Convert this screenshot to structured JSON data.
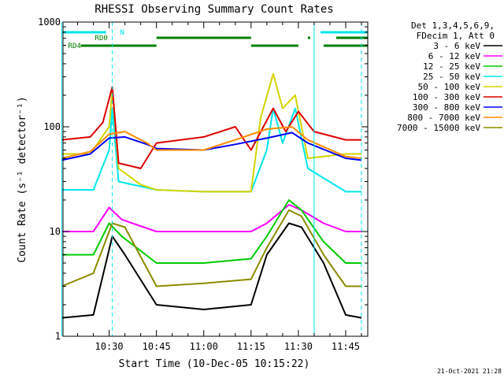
{
  "chart_data": {
    "type": "line",
    "title": "RHESSI Observing Summary Count Rates",
    "xlabel": "Start Time (10-Dec-05 10:15:22)",
    "ylabel": "Count Rate (s⁻¹ detector⁻¹)",
    "yscale": "log",
    "ylim": [
      1,
      1000
    ],
    "xlim": [
      "10:15:22",
      "11:52:00"
    ],
    "y_ticks": [
      {
        "value": 1,
        "label": "1"
      },
      {
        "value": 10,
        "label": "10"
      },
      {
        "value": 100,
        "label": "100"
      },
      {
        "value": 1000,
        "label": "1000"
      }
    ],
    "x_ticks": [
      {
        "value": "10:30",
        "label": "10:30"
      },
      {
        "value": "10:45",
        "label": "10:45"
      },
      {
        "value": "11:00",
        "label": "11:00"
      },
      {
        "value": "11:15",
        "label": "11:15"
      },
      {
        "value": "11:30",
        "label": "11:30"
      },
      {
        "value": "11:45",
        "label": "11:45"
      }
    ],
    "legend_header": [
      "Det 1,3,4,5,6,9,",
      "FDecim 1, Att 0"
    ],
    "legend_position": "right",
    "series": [
      {
        "name": "3 - 6 keV",
        "color": "#000000",
        "points": [
          [
            "10:15",
            1.5
          ],
          [
            "10:25",
            1.6
          ],
          [
            "10:31",
            9
          ],
          [
            "10:35",
            6
          ],
          [
            "10:45",
            2
          ],
          [
            "11:00",
            1.8
          ],
          [
            "11:15",
            2.0
          ],
          [
            "11:20",
            6
          ],
          [
            "11:27",
            12
          ],
          [
            "11:31",
            11
          ],
          [
            "11:38",
            5
          ],
          [
            "11:45",
            1.6
          ],
          [
            "11:50",
            1.5
          ]
        ]
      },
      {
        "name": "6 - 12 keV",
        "color": "#ff00ff",
        "points": [
          [
            "10:15",
            10
          ],
          [
            "10:25",
            10
          ],
          [
            "10:30",
            17
          ],
          [
            "10:34",
            13
          ],
          [
            "10:45",
            10
          ],
          [
            "11:00",
            10
          ],
          [
            "11:15",
            10
          ],
          [
            "11:20",
            12
          ],
          [
            "11:27",
            18
          ],
          [
            "11:31",
            16
          ],
          [
            "11:38",
            12
          ],
          [
            "11:45",
            10
          ],
          [
            "11:50",
            10
          ]
        ]
      },
      {
        "name": "12 - 25 keV",
        "color": "#00cc00",
        "points": [
          [
            "10:15",
            6
          ],
          [
            "10:25",
            6
          ],
          [
            "10:30",
            12
          ],
          [
            "10:34",
            9
          ],
          [
            "10:45",
            5
          ],
          [
            "11:00",
            5
          ],
          [
            "11:15",
            5.5
          ],
          [
            "11:20",
            9
          ],
          [
            "11:27",
            20
          ],
          [
            "11:31",
            16
          ],
          [
            "11:38",
            8
          ],
          [
            "11:45",
            5
          ],
          [
            "11:50",
            5
          ]
        ]
      },
      {
        "name": "25 - 50 keV",
        "color": "#00e5ee",
        "points": [
          [
            "10:15",
            25
          ],
          [
            "10:25",
            25
          ],
          [
            "10:30",
            60
          ],
          [
            "10:31",
            150
          ],
          [
            "10:33",
            30
          ],
          [
            "10:45",
            25
          ],
          [
            "11:00",
            24
          ],
          [
            "11:15",
            24
          ],
          [
            "11:20",
            60
          ],
          [
            "11:22",
            150
          ],
          [
            "11:25",
            70
          ],
          [
            "11:29",
            150
          ],
          [
            "11:33",
            40
          ],
          [
            "11:45",
            24
          ],
          [
            "11:50",
            24
          ]
        ]
      },
      {
        "name": "50 - 100 keV",
        "color": "#d4d400",
        "points": [
          [
            "10:15",
            55
          ],
          [
            "10:24",
            55
          ],
          [
            "10:30",
            100
          ],
          [
            "10:31",
            230
          ],
          [
            "10:33",
            40
          ],
          [
            "10:40",
            28
          ],
          [
            "10:45",
            25
          ],
          [
            "11:00",
            24
          ],
          [
            "11:15",
            24
          ],
          [
            "11:18",
            120
          ],
          [
            "11:22",
            320
          ],
          [
            "11:25",
            150
          ],
          [
            "11:29",
            200
          ],
          [
            "11:33",
            50
          ],
          [
            "11:45",
            55
          ],
          [
            "11:50",
            55
          ]
        ]
      },
      {
        "name": "100 - 300 keV",
        "color": "#dd0000",
        "points": [
          [
            "10:15",
            75
          ],
          [
            "10:24",
            80
          ],
          [
            "10:28",
            110
          ],
          [
            "10:31",
            240
          ],
          [
            "10:33",
            45
          ],
          [
            "10:40",
            40
          ],
          [
            "10:45",
            70
          ],
          [
            "11:00",
            80
          ],
          [
            "11:10",
            100
          ],
          [
            "11:15",
            60
          ],
          [
            "11:22",
            150
          ],
          [
            "11:26",
            90
          ],
          [
            "11:30",
            140
          ],
          [
            "11:35",
            90
          ],
          [
            "11:45",
            75
          ],
          [
            "11:50",
            75
          ]
        ]
      },
      {
        "name": "300 - 800 keV",
        "color": "#0000ff",
        "points": [
          [
            "10:15",
            48
          ],
          [
            "10:24",
            55
          ],
          [
            "10:30",
            78
          ],
          [
            "10:35",
            80
          ],
          [
            "10:42",
            68
          ],
          [
            "10:45",
            62
          ],
          [
            "11:00",
            60
          ],
          [
            "11:10",
            68
          ],
          [
            "11:20",
            78
          ],
          [
            "11:28",
            88
          ],
          [
            "11:33",
            70
          ],
          [
            "11:45",
            50
          ],
          [
            "11:50",
            48
          ]
        ]
      },
      {
        "name": "800 - 7000 keV",
        "color": "#ff8c00",
        "points": [
          [
            "10:15",
            50
          ],
          [
            "10:24",
            58
          ],
          [
            "10:30",
            85
          ],
          [
            "10:35",
            90
          ],
          [
            "10:42",
            70
          ],
          [
            "10:45",
            60
          ],
          [
            "11:00",
            60
          ],
          [
            "11:10",
            75
          ],
          [
            "11:20",
            95
          ],
          [
            "11:28",
            100
          ],
          [
            "11:33",
            75
          ],
          [
            "11:45",
            52
          ],
          [
            "11:50",
            50
          ]
        ]
      },
      {
        "name": "7000 - 15000 keV",
        "color": "#8b8b00",
        "points": [
          [
            "10:15",
            3
          ],
          [
            "10:25",
            4
          ],
          [
            "10:31",
            12
          ],
          [
            "10:35",
            11
          ],
          [
            "10:45",
            3
          ],
          [
            "11:00",
            3.2
          ],
          [
            "11:15",
            3.5
          ],
          [
            "11:20",
            7
          ],
          [
            "11:27",
            16
          ],
          [
            "11:31",
            14
          ],
          [
            "11:38",
            6
          ],
          [
            "11:45",
            3
          ],
          [
            "11:50",
            3
          ]
        ]
      }
    ],
    "state_bars": [
      {
        "label": "RD0",
        "color": "#008000",
        "segments": [
          [
            "10:45",
            "11:15"
          ],
          [
            "11:33",
            "11:33"
          ],
          [
            "11:42",
            "11:52"
          ]
        ]
      },
      {
        "label": "RD4",
        "color": "#008000",
        "segments": [
          [
            "10:21",
            "10:45"
          ],
          [
            "11:15",
            "11:30"
          ],
          [
            "11:38",
            "11:52"
          ]
        ]
      },
      {
        "label": "N",
        "color": "#00e5ee",
        "segments": [
          [
            "10:15",
            "10:29"
          ],
          [
            "11:37",
            "11:52"
          ]
        ]
      }
    ],
    "vertical_markers": [
      {
        "time": "10:31",
        "color": "#00e5ee",
        "style": "dashed"
      },
      {
        "time": "11:35",
        "color": "#00e5ee",
        "style": "solid"
      },
      {
        "time": "11:50",
        "color": "#00e5ee",
        "style": "dashed"
      },
      {
        "time": "10:15",
        "color": "#00e5ee",
        "style": "solid"
      }
    ],
    "footer_timestamp": "21-Oct-2021 21:28"
  }
}
